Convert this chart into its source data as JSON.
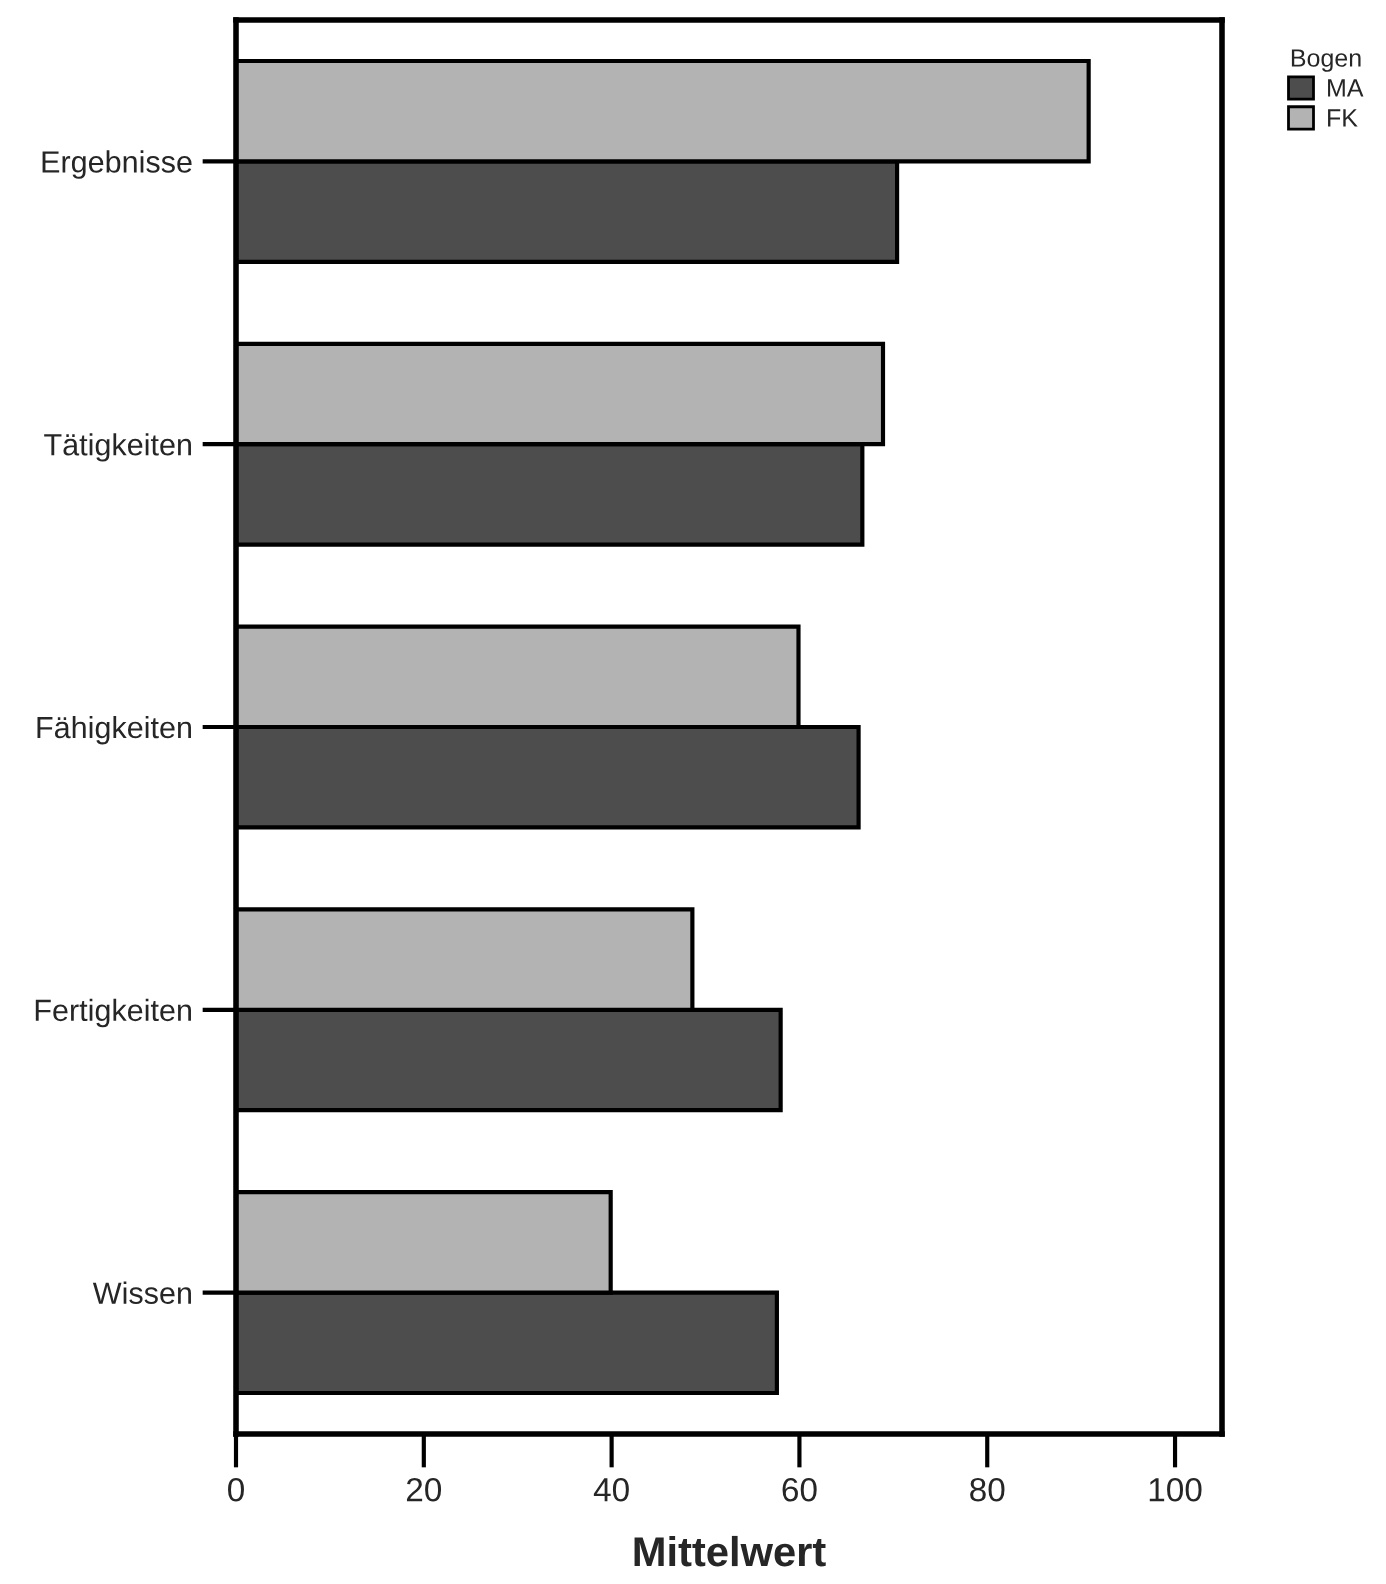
{
  "chart_data": {
    "type": "bar",
    "orientation": "horizontal",
    "xlabel": "Mittelwert",
    "legend_title": "Bogen",
    "categories": [
      "Ergebnisse",
      "Tätigkeiten",
      "Fähigkeiten",
      "Fertigkeiten",
      "Wissen"
    ],
    "series": [
      {
        "name": "MA",
        "color": "#4d4d4d",
        "values": [
          70.4,
          66.7,
          66.3,
          58.0,
          57.6
        ]
      },
      {
        "name": "FK",
        "color": "#b3b3b3",
        "values": [
          90.8,
          68.9,
          59.9,
          48.6,
          39.9
        ]
      }
    ],
    "xlim": [
      0,
      105
    ],
    "xticks": [
      0,
      20,
      40,
      60,
      80,
      100
    ],
    "grid": false,
    "legend": "top right"
  }
}
